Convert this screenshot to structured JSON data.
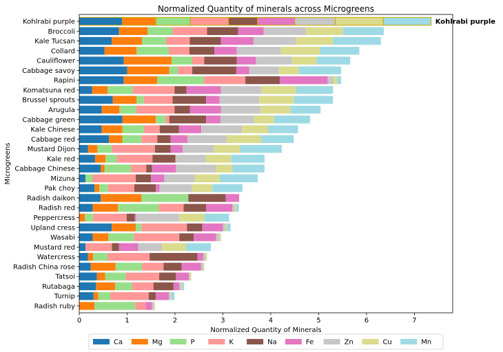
{
  "chart_data": {
    "type": "bar",
    "orientation": "horizontal",
    "stacked": true,
    "title": "Normalized Quantity of minerals  across Microgreens",
    "xlabel": "Normalized Quantity of Minerals",
    "ylabel": "Microgreens",
    "xlim": [
      0,
      7.8
    ],
    "xticks": [
      0,
      1,
      2,
      3,
      4,
      5,
      6,
      7
    ],
    "legend_position": "bottom-center",
    "highlight": {
      "category": "Kohlrabi purple",
      "label": "Kohlrabi purple",
      "edge_color": "#c8a800"
    },
    "categories": [
      "Kohlrabi purple",
      "Broccoli",
      "Kale Tucsan",
      "Collard",
      "Cauliflower",
      "Cabbage savoy",
      "Rapini",
      "Komatsuna red",
      "Brussel sprouts",
      "Arugula",
      "Cabbage green",
      "Kale Chinese",
      "Cabbage red",
      "Mustard Dijon",
      "Kale red",
      "Cabbage Chinese",
      "Mizuna",
      "Pak choy",
      "Radish daikon",
      "Radish red",
      "Peppercress",
      "Upland cress",
      "Wasabi",
      "Mustard red",
      "Watercress",
      "Radish China rose",
      "Tatsoi",
      "Rutabaga",
      "Turnip",
      "Radish ruby"
    ],
    "series": [
      {
        "name": "Ca",
        "color": "#1f77b4",
        "values": [
          0.9,
          0.83,
          0.68,
          0.53,
          0.93,
          1.0,
          0.93,
          0.27,
          0.7,
          0.47,
          0.9,
          0.47,
          0.62,
          0.18,
          0.33,
          0.45,
          0.13,
          0.32,
          0.45,
          0.28,
          0.0,
          0.68,
          0.28,
          0.13,
          0.18,
          0.24,
          0.37,
          0.35,
          0.3,
          0.0
        ]
      },
      {
        "name": "Mg",
        "color": "#ff7f0e",
        "values": [
          0.7,
          0.6,
          0.63,
          0.67,
          1.0,
          0.88,
          0.7,
          0.32,
          0.5,
          0.37,
          0.7,
          0.43,
          0.28,
          0.2,
          0.22,
          0.08,
          0.0,
          0.1,
          0.85,
          0.53,
          0.12,
          0.5,
          0.33,
          0.0,
          0.11,
          0.52,
          0.17,
          0.4,
          0.1,
          0.32
        ]
      },
      {
        "name": "P",
        "color": "#98df8a",
        "values": [
          0.72,
          0.52,
          0.5,
          0.67,
          0.43,
          0.18,
          0.97,
          0.53,
          0.15,
          0.35,
          0.2,
          0.45,
          0.4,
          0.3,
          0.23,
          0.55,
          0.15,
          0.18,
          0.98,
          0.85,
          0.17,
          0.12,
          0.53,
          0.0,
          0.3,
          0.55,
          0.43,
          0.35,
          0.25,
          0.85
        ]
      },
      {
        "name": "K",
        "color": "#ff9896",
        "values": [
          0.8,
          0.72,
          0.5,
          0.43,
          0.25,
          0.3,
          0.87,
          0.87,
          0.6,
          0.8,
          0.08,
          0.33,
          0.33,
          0.9,
          0.75,
          0.32,
          0.9,
          0.55,
          0.0,
          0.52,
          0.7,
          0.95,
          0.95,
          0.55,
          0.88,
          0.45,
          0.7,
          0.45,
          0.8,
          0.22
        ]
      },
      {
        "name": "Na",
        "color": "#8c564b",
        "values": [
          0.6,
          0.65,
          0.65,
          0.52,
          0.68,
          0.92,
          0.72,
          0.25,
          0.7,
          0.32,
          0.77,
          0.4,
          0.28,
          0.33,
          0.48,
          0.12,
          0.32,
          0.45,
          0.78,
          0.47,
          0.17,
          0.32,
          0.3,
          0.15,
          1.0,
          0.38,
          0.35,
          0.42,
          0.15,
          0.0
        ]
      },
      {
        "name": "Fe",
        "color": "#e377c2",
        "values": [
          0.78,
          0.53,
          0.68,
          0.47,
          0.4,
          0.27,
          1.0,
          0.72,
          0.28,
          0.65,
          0.3,
          0.47,
          0.35,
          0.25,
          0.0,
          0.5,
          0.28,
          0.08,
          0.28,
          0.55,
          0.03,
          0.43,
          0.47,
          0.4,
          0.12,
          0.4,
          0.27,
          0.12,
          0.27,
          0.13
        ]
      },
      {
        "name": "Zn",
        "color": "#c7c7c7",
        "values": [
          0.85,
          0.88,
          0.88,
          0.92,
          0.75,
          0.62,
          0.12,
          0.85,
          0.83,
          0.83,
          0.7,
          0.85,
          0.82,
          0.65,
          0.63,
          0.83,
          0.63,
          0.67,
          0.0,
          0.05,
          0.9,
          0.05,
          0.07,
          0.5,
          0.05,
          0.05,
          0.03,
          0.04,
          0.03,
          0.04
        ]
      },
      {
        "name": "Cu",
        "color": "#dbdb8d",
        "values": [
          1.0,
          0.78,
          0.78,
          0.82,
          0.52,
          0.42,
          0.08,
          0.72,
          0.72,
          0.62,
          0.42,
          0.55,
          0.72,
          0.55,
          0.53,
          0.35,
          0.52,
          0.43,
          0.0,
          0.03,
          0.52,
          0.03,
          0.03,
          0.5,
          0.03,
          0.02,
          0.02,
          0.02,
          0.02,
          0.02
        ]
      },
      {
        "name": "Mn",
        "color": "#9edae5",
        "values": [
          1.0,
          0.85,
          1.0,
          0.82,
          0.7,
          0.88,
          0.08,
          0.77,
          0.82,
          0.63,
          0.75,
          0.62,
          0.68,
          0.87,
          0.7,
          0.67,
          0.8,
          0.63,
          0.0,
          0.05,
          0.52,
          0.08,
          0.0,
          0.52,
          0.0,
          0.0,
          0.0,
          0.04,
          0.07,
          0.0
        ]
      }
    ]
  }
}
